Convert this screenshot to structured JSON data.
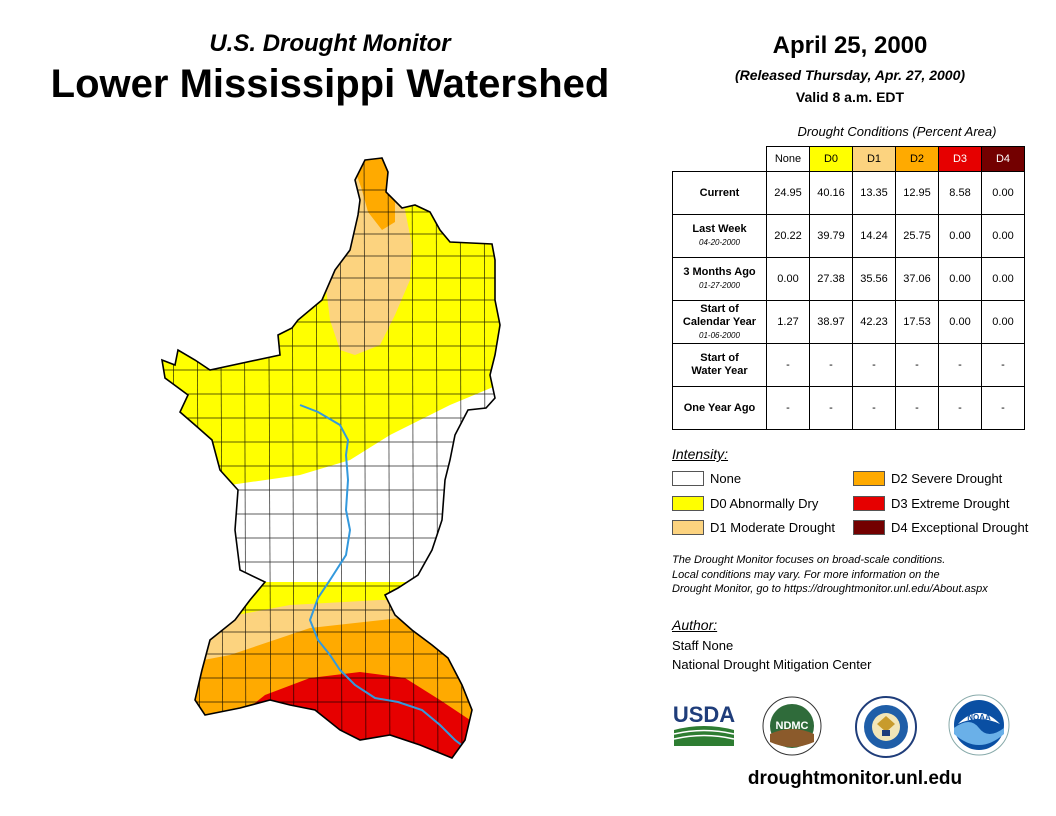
{
  "header": {
    "subtitle": "U.S. Drought Monitor",
    "title": "Lower Mississippi Watershed",
    "date": "April 25, 2000",
    "released": "(Released Thursday, Apr. 27, 2000)",
    "valid": "Valid 8 a.m. EDT"
  },
  "table": {
    "caption": "Drought Conditions (Percent Area)",
    "columns": [
      "None",
      "D0",
      "D1",
      "D2",
      "D3",
      "D4"
    ],
    "rows": [
      {
        "label": "Current",
        "date": "",
        "values": [
          "24.95",
          "40.16",
          "13.35",
          "12.95",
          "8.58",
          "0.00"
        ]
      },
      {
        "label": "Last Week",
        "date": "04-20-2000",
        "values": [
          "20.22",
          "39.79",
          "14.24",
          "25.75",
          "0.00",
          "0.00"
        ]
      },
      {
        "label": "3 Months Ago",
        "date": "01-27-2000",
        "values": [
          "0.00",
          "27.38",
          "35.56",
          "37.06",
          "0.00",
          "0.00"
        ]
      },
      {
        "label_line1": "Start of",
        "label_line2": "Calendar Year",
        "date": "01-06-2000",
        "values": [
          "1.27",
          "38.97",
          "42.23",
          "17.53",
          "0.00",
          "0.00"
        ]
      },
      {
        "label_line1": "Start of",
        "label_line2": "Water Year",
        "date": "",
        "values": [
          "-",
          "-",
          "-",
          "-",
          "-",
          "-"
        ]
      },
      {
        "label": "One Year Ago",
        "date": "",
        "values": [
          "-",
          "-",
          "-",
          "-",
          "-",
          "-"
        ]
      }
    ]
  },
  "legend": {
    "title": "Intensity:",
    "items": [
      {
        "label": "None",
        "color": "#ffffff"
      },
      {
        "label": "D0 Abnormally Dry",
        "color": "#ffff00"
      },
      {
        "label": "D1 Moderate Drought",
        "color": "#fcd37f"
      },
      {
        "label": "D2 Severe Drought",
        "color": "#ffaa00"
      },
      {
        "label": "D3 Extreme Drought",
        "color": "#e60000"
      },
      {
        "label": "D4 Exceptional Drought",
        "color": "#730000"
      }
    ]
  },
  "note": {
    "line1": "The Drought Monitor focuses on broad-scale conditions.",
    "line2": "Local conditions may vary. For more information on the",
    "line3": "Drought Monitor, go to https://droughtmonitor.unl.edu/About.aspx"
  },
  "author": {
    "title": "Author:",
    "name": "Staff None",
    "org": "National Drought Mitigation Center"
  },
  "logos": {
    "usda": "USDA",
    "ndmc": "NDMC",
    "noaa": "NOAA"
  },
  "footer": {
    "website": "droughtmonitor.unl.edu"
  },
  "colors": {
    "none": "#ffffff",
    "d0": "#ffff00",
    "d1": "#fcd37f",
    "d2": "#ffaa00",
    "d3": "#e60000",
    "d4": "#730000",
    "river": "#3399dd"
  }
}
